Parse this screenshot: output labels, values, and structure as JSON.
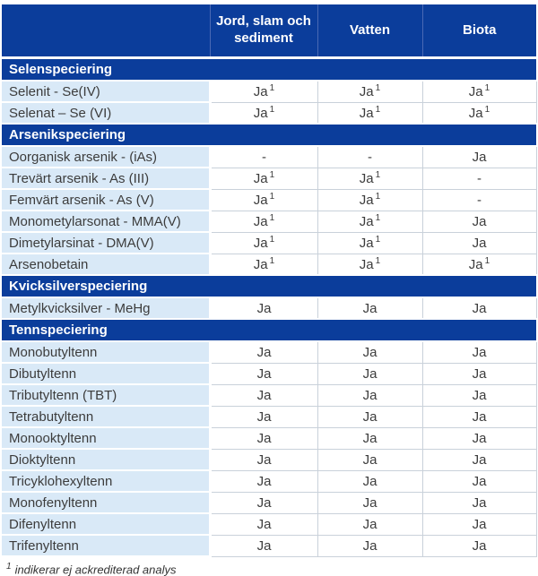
{
  "table": {
    "columns": [
      "Jord, slam och sediment",
      "Vatten",
      "Biota"
    ],
    "sections": [
      {
        "title": "Selenspeciering",
        "rows": [
          {
            "name": "Selenit - Se(IV)",
            "values": [
              "Ja¹",
              "Ja¹",
              "Ja¹"
            ]
          },
          {
            "name": "Selenat – Se (VI)",
            "values": [
              "Ja¹",
              "Ja¹",
              "Ja¹"
            ]
          }
        ]
      },
      {
        "title": "Arsenikspeciering",
        "rows": [
          {
            "name": "Oorganisk arsenik - (iAs)",
            "values": [
              "-",
              "-",
              "Ja"
            ]
          },
          {
            "name": "Trevärt arsenik - As (III)",
            "values": [
              "Ja¹",
              "Ja¹",
              "-"
            ]
          },
          {
            "name": "Femvärt arsenik - As (V)",
            "values": [
              "Ja¹",
              "Ja¹",
              "-"
            ]
          },
          {
            "name": "Monometylarsonat - MMA(V)",
            "values": [
              "Ja¹",
              "Ja¹",
              "Ja"
            ]
          },
          {
            "name": "Dimetylarsinat - DMA(V)",
            "values": [
              "Ja¹",
              "Ja¹",
              "Ja"
            ]
          },
          {
            "name": "Arsenobetain",
            "values": [
              "Ja¹",
              "Ja¹",
              "Ja¹"
            ]
          }
        ]
      },
      {
        "title": "Kvicksilverspeciering",
        "rows": [
          {
            "name": "Metylkvicksilver - MeHg",
            "values": [
              "Ja",
              "Ja",
              "Ja"
            ]
          }
        ]
      },
      {
        "title": "Tennspeciering",
        "rows": [
          {
            "name": "Monobutyltenn",
            "values": [
              "Ja",
              "Ja",
              "Ja"
            ]
          },
          {
            "name": "Dibutyltenn",
            "values": [
              "Ja",
              "Ja",
              "Ja"
            ]
          },
          {
            "name": "Tributyltenn (TBT)",
            "values": [
              "Ja",
              "Ja",
              "Ja"
            ]
          },
          {
            "name": "Tetrabutyltenn",
            "values": [
              "Ja",
              "Ja",
              "Ja"
            ]
          },
          {
            "name": "Monooktyltenn",
            "values": [
              "Ja",
              "Ja",
              "Ja"
            ]
          },
          {
            "name": "Dioktyltenn",
            "values": [
              "Ja",
              "Ja",
              "Ja"
            ]
          },
          {
            "name": "Tricyklohexyltenn",
            "values": [
              "Ja",
              "Ja",
              "Ja"
            ]
          },
          {
            "name": "Monofenyltenn",
            "values": [
              "Ja",
              "Ja",
              "Ja"
            ]
          },
          {
            "name": "Difenyltenn",
            "values": [
              "Ja",
              "Ja",
              "Ja"
            ]
          },
          {
            "name": "Trifenyltenn",
            "values": [
              "Ja",
              "Ja",
              "Ja"
            ]
          }
        ]
      }
    ]
  },
  "footnote": {
    "marker": "1",
    "text": "indikerar ej ackrediterad analys"
  },
  "colors": {
    "header_blue": "#0b3d9b",
    "row_light_blue": "#d9e9f7",
    "grid_line": "#c9d1da",
    "text": "#3c3c3c"
  }
}
